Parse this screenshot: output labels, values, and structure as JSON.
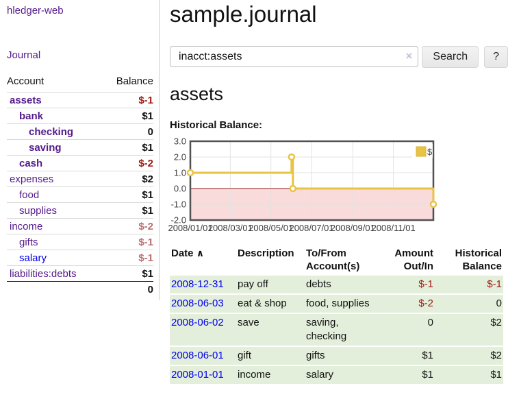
{
  "app": {
    "title": "hledger-web",
    "nav_journal": "Journal"
  },
  "sidebar": {
    "col_account": "Account",
    "col_balance": "Balance",
    "accounts": [
      {
        "name": "assets",
        "balance": "$-1",
        "indent": 0,
        "bold": true,
        "negative": true,
        "muted": false,
        "unvisited": false
      },
      {
        "name": "bank",
        "balance": "$1",
        "indent": 1,
        "bold": true,
        "negative": false,
        "muted": false,
        "unvisited": false
      },
      {
        "name": "checking",
        "balance": "0",
        "indent": 2,
        "bold": true,
        "negative": false,
        "muted": false,
        "unvisited": false
      },
      {
        "name": "saving",
        "balance": "$1",
        "indent": 2,
        "bold": true,
        "negative": false,
        "muted": false,
        "unvisited": false
      },
      {
        "name": "cash",
        "balance": "$-2",
        "indent": 1,
        "bold": true,
        "negative": true,
        "muted": false,
        "unvisited": false
      },
      {
        "name": "expenses",
        "balance": "$2",
        "indent": 0,
        "bold": false,
        "negative": false,
        "muted": false,
        "unvisited": false
      },
      {
        "name": "food",
        "balance": "$1",
        "indent": 1,
        "bold": false,
        "negative": false,
        "muted": false,
        "unvisited": false
      },
      {
        "name": "supplies",
        "balance": "$1",
        "indent": 1,
        "bold": false,
        "negative": false,
        "muted": false,
        "unvisited": false
      },
      {
        "name": "income",
        "balance": "$-2",
        "indent": 0,
        "bold": false,
        "negative": true,
        "muted": true,
        "unvisited": false
      },
      {
        "name": "gifts",
        "balance": "$-1",
        "indent": 1,
        "bold": false,
        "negative": true,
        "muted": true,
        "unvisited": false
      },
      {
        "name": "salary",
        "balance": "$-1",
        "indent": 1,
        "bold": false,
        "negative": true,
        "muted": true,
        "unvisited": true
      },
      {
        "name": "liabilities:debts",
        "balance": "$1",
        "indent": 0,
        "bold": false,
        "negative": false,
        "muted": false,
        "unvisited": false
      }
    ],
    "total": "0"
  },
  "main": {
    "title": "sample.journal",
    "search": {
      "value": "inacct:assets",
      "clear_icon": "×",
      "button": "Search",
      "help": "?"
    },
    "account_heading": "assets",
    "chart_heading": "Historical Balance:"
  },
  "chart_data": {
    "type": "line",
    "step": true,
    "title": "Historical Balance",
    "legend": [
      {
        "label": "$",
        "color": "#e9c342"
      }
    ],
    "x_range": [
      "2008-01-01",
      "2008-12-31"
    ],
    "ylim": [
      -2,
      3
    ],
    "y_ticks": [
      "3.0",
      "2.0",
      "1.0",
      "0.0",
      "-1.0",
      "-2.0"
    ],
    "x_ticks": [
      "2008/01/01",
      "2008/03/01",
      "2008/05/01",
      "2008/07/01",
      "2008/09/01",
      "2008/11/01"
    ],
    "points": [
      {
        "date": "2008-01-01",
        "value": 1
      },
      {
        "date": "2008-06-01",
        "value": 2
      },
      {
        "date": "2008-06-03",
        "value": 0
      },
      {
        "date": "2008-12-31",
        "value": -1
      }
    ],
    "series_color": "#e9c342",
    "negative_region_color": "#f9dbdb",
    "zero_line_color": "#8b1515",
    "grid": true,
    "legend_position": "top-right"
  },
  "table": {
    "headers": {
      "date": "Date",
      "sort_indicator": "∧",
      "description": "Description",
      "accounts": "To/From Account(s)",
      "amount": "Amount Out/In",
      "balance": "Historical Balance"
    },
    "rows": [
      {
        "date": "2008-12-31",
        "description": "pay off",
        "accounts": "debts",
        "amount": "$-1",
        "balance": "$-1"
      },
      {
        "date": "2008-06-03",
        "description": "eat & shop",
        "accounts": "food, supplies",
        "amount": "$-2",
        "balance": "0"
      },
      {
        "date": "2008-06-02",
        "description": "save",
        "accounts": "saving, checking",
        "amount": "0",
        "balance": "$2"
      },
      {
        "date": "2008-06-01",
        "description": "gift",
        "accounts": "gifts",
        "amount": "$1",
        "balance": "$2"
      },
      {
        "date": "2008-01-01",
        "description": "income",
        "accounts": "salary",
        "amount": "$1",
        "balance": "$1"
      }
    ]
  }
}
